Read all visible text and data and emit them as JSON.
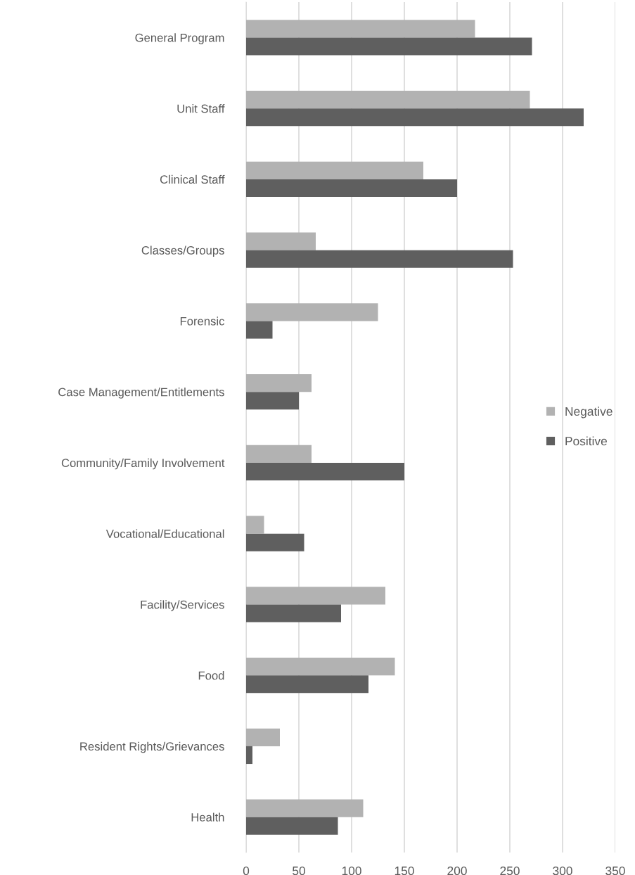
{
  "chart_data": {
    "type": "bar",
    "orientation": "horizontal",
    "categories": [
      "General Program",
      "Unit Staff",
      "Clinical Staff",
      "Classes/Groups",
      "Forensic",
      "Case Management/Entitlements",
      "Community/Family Involvement",
      "Vocational/Educational",
      "Facility/Services",
      "Food",
      "Resident Rights/Grievances",
      "Health"
    ],
    "series": [
      {
        "name": "Negative",
        "color": "#b2b2b2",
        "values": [
          217,
          269,
          168,
          66,
          125,
          62,
          62,
          17,
          132,
          141,
          32,
          111
        ]
      },
      {
        "name": "Positive",
        "color": "#5f5f5f",
        "values": [
          271,
          320,
          200,
          253,
          25,
          50,
          150,
          55,
          90,
          116,
          6,
          87
        ]
      }
    ],
    "xlim": [
      0,
      350
    ],
    "xticks": [
      0,
      50,
      100,
      150,
      200,
      250,
      300,
      350
    ],
    "grid": "x",
    "legend": "right"
  }
}
